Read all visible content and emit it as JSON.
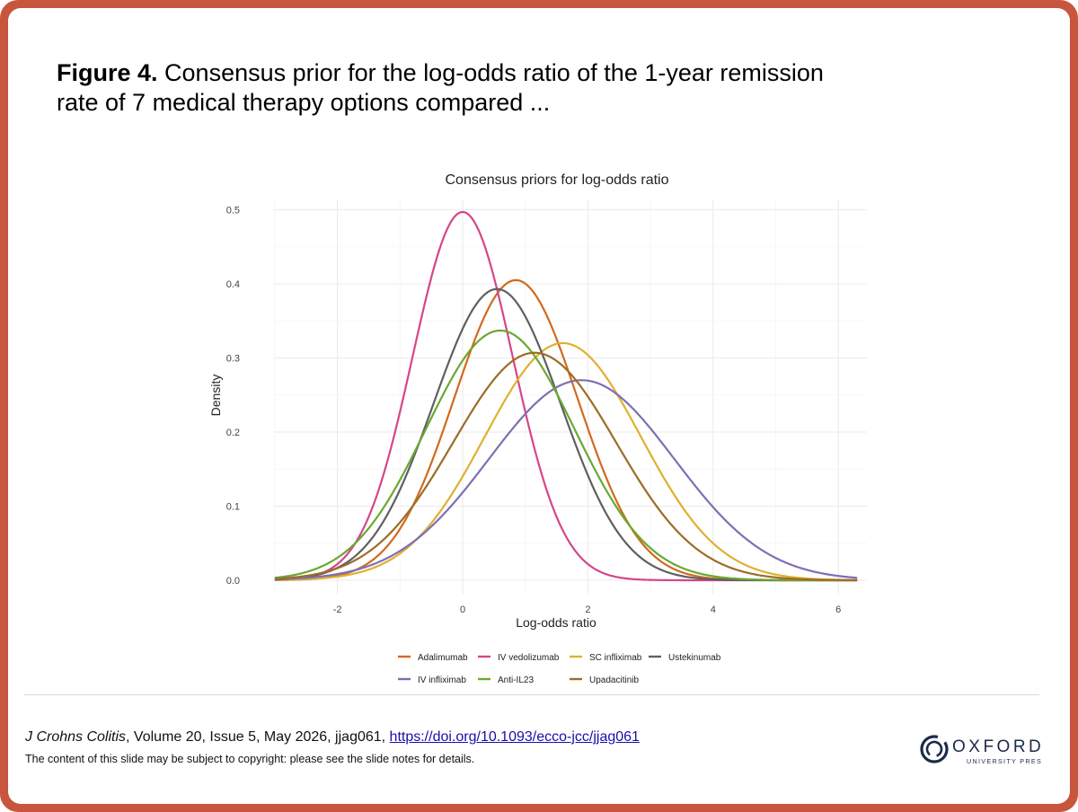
{
  "figure": {
    "label": "Figure 4.",
    "caption": "Consensus prior for the log-odds ratio of the 1-year remission rate of 7 medical therapy options compared ..."
  },
  "footer": {
    "citation_journal": "J Crohns Colitis",
    "citation_rest": ", Volume 20, Issue 5, May 2026, jjag061, ",
    "doi_text": "https://doi.org/10.1093/ecco-jcc/jjag061",
    "copyright": "The content of this slide may be subject to copyright: please see the slide notes for details.",
    "logo_word": "OXFORD",
    "logo_sub": "UNIVERSITY PRESS",
    "frame_color": "#c8553d"
  },
  "chart_data": {
    "type": "line",
    "title": "Consensus priors for log-odds ratio",
    "xlabel": "Log-odds ratio",
    "ylabel": "Density",
    "xlim": [
      -3,
      6.3
    ],
    "ylim": [
      0,
      0.5
    ],
    "xticks": [
      "-2",
      "0",
      "2",
      "4",
      "6"
    ],
    "yticks": [
      "0.0",
      "0.1",
      "0.2",
      "0.3",
      "0.4",
      "0.5"
    ],
    "grid": true,
    "legend_position": "bottom",
    "series": [
      {
        "name": "Adalimumab",
        "color": "#d2691e",
        "distribution": "normal",
        "mean": 0.85,
        "sd": 0.985,
        "peak_density": 0.405
      },
      {
        "name": "IV vedolizumab",
        "color": "#d6458a",
        "distribution": "normal",
        "mean": 0.0,
        "sd": 0.8,
        "peak_density": 0.497
      },
      {
        "name": "SC infliximab",
        "color": "#e0b030",
        "distribution": "normal",
        "mean": 1.6,
        "sd": 1.245,
        "peak_density": 0.32
      },
      {
        "name": "Ustekinumab",
        "color": "#5f5f5f",
        "distribution": "normal",
        "mean": 0.55,
        "sd": 1.015,
        "peak_density": 0.393
      },
      {
        "name": "IV infliximab",
        "color": "#7e6fb4",
        "distribution": "normal",
        "mean": 1.9,
        "sd": 1.48,
        "peak_density": 0.27
      },
      {
        "name": "Anti-IL23",
        "color": "#6aa832",
        "distribution": "normal",
        "mean": 0.6,
        "sd": 1.185,
        "peak_density": 0.337
      },
      {
        "name": "Upadacitinib",
        "color": "#9c6d26",
        "distribution": "normal",
        "mean": 1.15,
        "sd": 1.3,
        "peak_density": 0.307
      }
    ]
  }
}
